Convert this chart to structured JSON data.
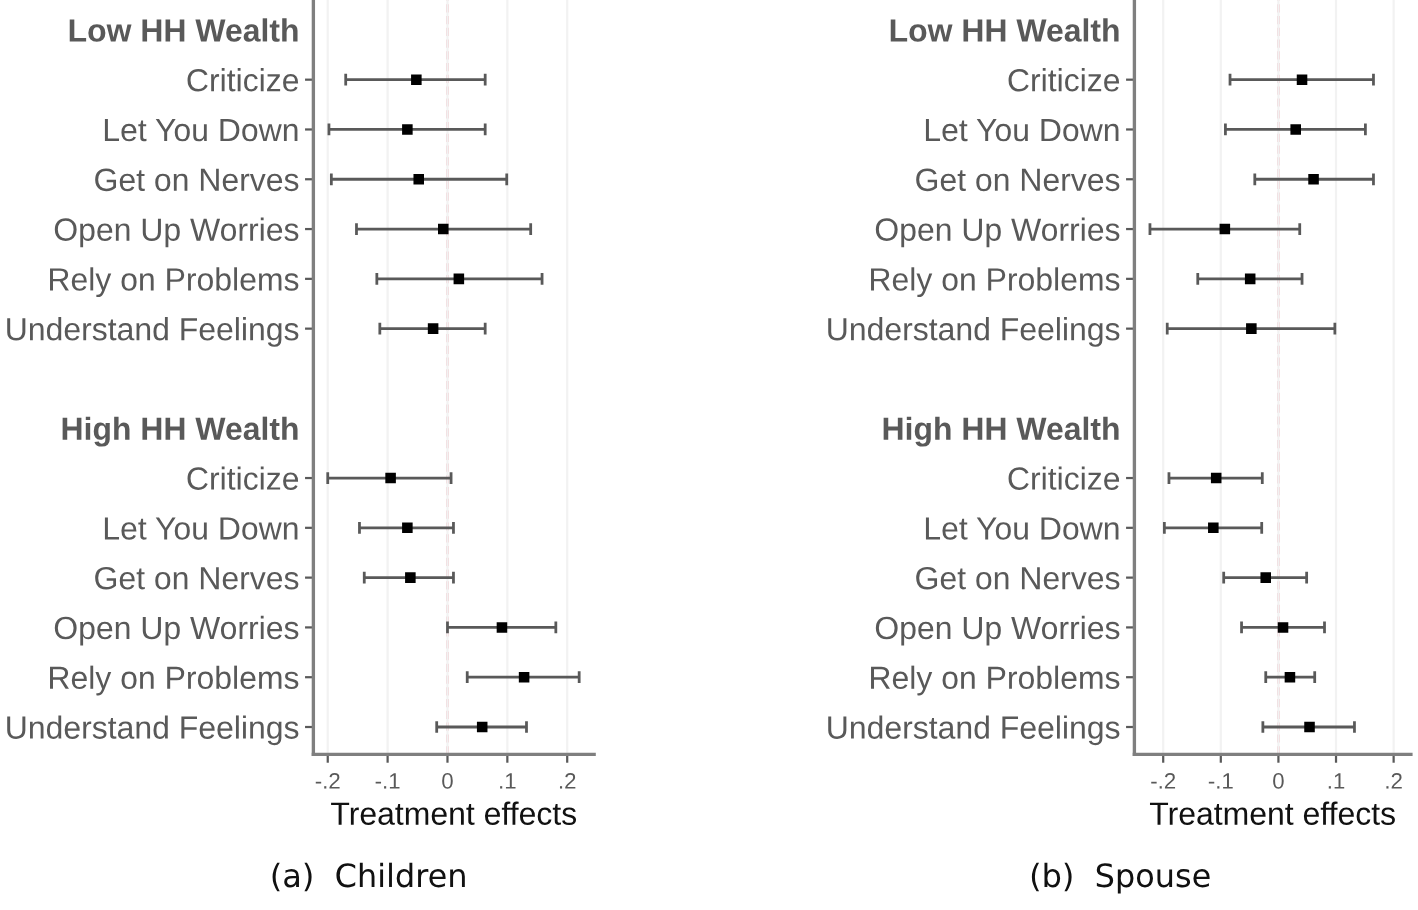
{
  "chart_data": [
    {
      "type": "scatter",
      "orientation": "horizontal",
      "title": "(a)  Children",
      "xlabel": "Treatment effects",
      "categories": [
        "Low HH Wealth",
        "Criticize",
        "Let You Down",
        "Get on Nerves",
        "Open Up Worries",
        "Rely on Problems",
        "Understand Feelings",
        null,
        "High HH Wealth",
        "Criticize",
        "Let You Down",
        "Get on Nerves",
        "Open Up Worries",
        "Rely on Problems",
        "Understand Feelings"
      ],
      "series": [
        {
          "color": "#000000",
          "values": [
            null,
            -0.052,
            -0.067,
            -0.048,
            -0.007,
            0.019,
            -0.024,
            null,
            null,
            -0.095,
            -0.067,
            -0.062,
            0.091,
            0.128,
            0.058
          ],
          "errors": [
            null,
            [
              -0.17,
              0.063
            ],
            [
              -0.198,
              0.063
            ],
            [
              -0.194,
              0.099
            ],
            [
              -0.152,
              0.139
            ],
            [
              -0.118,
              0.158
            ],
            [
              -0.113,
              0.063
            ],
            null,
            null,
            [
              -0.2,
              0.006
            ],
            [
              -0.147,
              0.01
            ],
            [
              -0.139,
              0.01
            ],
            [
              0.0,
              0.181
            ],
            [
              0.033,
              0.22
            ],
            [
              -0.018,
              0.132
            ]
          ]
        }
      ],
      "xlim": [
        -0.224,
        0.245
      ],
      "xticks": [
        {
          "value": -0.2,
          "label": "-.2"
        },
        {
          "value": -0.1,
          "label": "-.1"
        },
        0,
        {
          "value": 0.1,
          "label": ".1"
        },
        {
          "value": 0.2,
          "label": ".2"
        }
      ],
      "ref_lines": [
        {
          "axis": "x",
          "value": 0,
          "color": "#e8a0a8",
          "line_style": "dashed"
        }
      ],
      "marker": "square",
      "grid": "x",
      "legend": false
    },
    {
      "type": "scatter",
      "orientation": "horizontal",
      "title": "(b)  Spouse",
      "xlabel": "Treatment effects",
      "categories": [
        "Low HH Wealth",
        "Criticize",
        "Let You Down",
        "Get on Nerves",
        "Open Up Worries",
        "Rely on Problems",
        "Understand Feelings",
        null,
        "High HH Wealth",
        "Criticize",
        "Let You Down",
        "Get on Nerves",
        "Open Up Worries",
        "Rely on Problems",
        "Understand Feelings"
      ],
      "series": [
        {
          "color": "#000000",
          "values": [
            null,
            0.041,
            0.03,
            0.061,
            -0.093,
            -0.049,
            -0.047,
            null,
            null,
            -0.108,
            -0.113,
            -0.022,
            0.008,
            0.02,
            0.054
          ],
          "errors": [
            null,
            [
              -0.084,
              0.165
            ],
            [
              -0.092,
              0.151
            ],
            [
              -0.041,
              0.165
            ],
            [
              -0.223,
              0.037
            ],
            [
              -0.14,
              0.041
            ],
            [
              -0.193,
              0.098
            ],
            null,
            null,
            [
              -0.19,
              -0.028
            ],
            [
              -0.198,
              -0.029
            ],
            [
              -0.095,
              0.049
            ],
            [
              -0.064,
              0.08
            ],
            [
              -0.022,
              0.063
            ],
            [
              -0.027,
              0.132
            ]
          ]
        }
      ],
      "xlim": [
        -0.25,
        0.23
      ],
      "xticks": [
        {
          "value": -0.2,
          "label": "-.2"
        },
        {
          "value": -0.1,
          "label": "-.1"
        },
        0,
        {
          "value": 0.1,
          "label": ".1"
        },
        {
          "value": 0.2,
          "label": ".2"
        }
      ],
      "ref_lines": [
        {
          "axis": "x",
          "value": 0,
          "color": "#e8a0a8",
          "line_style": "dashed"
        }
      ],
      "marker": "square",
      "grid": "x",
      "legend": false
    }
  ]
}
